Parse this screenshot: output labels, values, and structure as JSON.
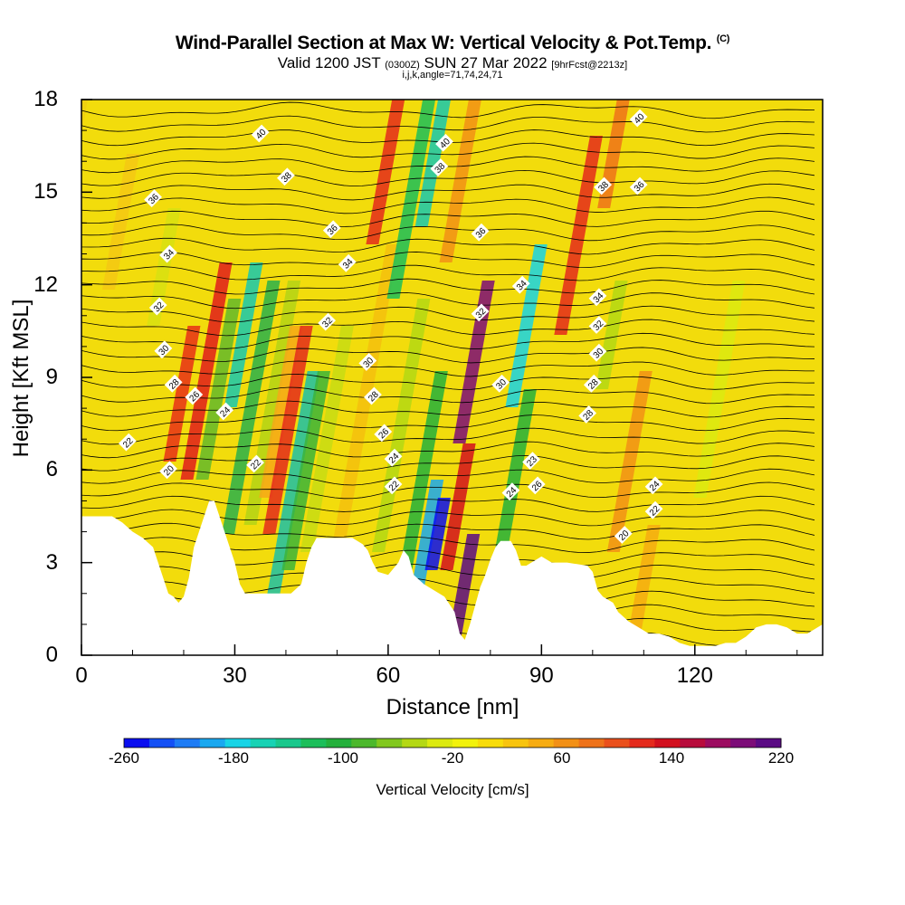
{
  "header": {
    "title": "Wind-Parallel Section at Max W: Vertical Velocity & Pot.Temp.",
    "copyright": "(C)",
    "valid_prefix": "Valid 1200 JST",
    "valid_utc": "(0300Z)",
    "valid_suffix": "SUN 27 Mar 2022",
    "forecast": "[9hrFcst@2213z]",
    "indices": "i,j,k,angle=71,74,24,71"
  },
  "colorbar": {
    "label": "Vertical Velocity [cm/s]",
    "tick_labels": [
      "-260",
      "-180",
      "-100",
      "-20",
      "60",
      "140",
      "220"
    ],
    "colors": [
      "#0a0ef0",
      "#1450f5",
      "#1e7cf5",
      "#1aa8f0",
      "#18d4e6",
      "#18d2b4",
      "#1ac88c",
      "#1cbe5a",
      "#24b03c",
      "#4cb82c",
      "#82c81e",
      "#b4d814",
      "#dcea10",
      "#f2f20c",
      "#f8dc0a",
      "#f8c40e",
      "#f6ac12",
      "#f29016",
      "#ee721a",
      "#ea501c",
      "#e42a1c",
      "#d2101e",
      "#b80c3c",
      "#9c0c60",
      "#7c0c78",
      "#5a0a84"
    ]
  },
  "chart_data": {
    "type": "heatmap",
    "xlabel": "Distance [nm]",
    "ylabel": "Height [Kft MSL]",
    "xlim": [
      0,
      145
    ],
    "ylim": [
      0,
      18
    ],
    "x_ticks": [
      "0",
      "30",
      "60",
      "90",
      "120"
    ],
    "y_ticks": [
      "0",
      "3",
      "6",
      "9",
      "12",
      "15",
      "18"
    ],
    "color_variable": "Vertical Velocity [cm/s]",
    "color_range": [
      -260,
      220
    ],
    "contour_variable": "Pot.Temp. (C)",
    "contour_labels": [
      {
        "text": "40",
        "x": 35,
        "y": 16.9
      },
      {
        "text": "38",
        "x": 40,
        "y": 15.5
      },
      {
        "text": "36",
        "x": 14,
        "y": 14.8
      },
      {
        "text": "36",
        "x": 49,
        "y": 13.8
      },
      {
        "text": "34",
        "x": 17,
        "y": 13.0
      },
      {
        "text": "34",
        "x": 52,
        "y": 12.7
      },
      {
        "text": "32",
        "x": 15,
        "y": 11.3
      },
      {
        "text": "32",
        "x": 48,
        "y": 10.8
      },
      {
        "text": "30",
        "x": 16,
        "y": 9.9
      },
      {
        "text": "30",
        "x": 56,
        "y": 9.5
      },
      {
        "text": "28",
        "x": 18,
        "y": 8.8
      },
      {
        "text": "28",
        "x": 57,
        "y": 8.4
      },
      {
        "text": "26",
        "x": 22,
        "y": 8.4
      },
      {
        "text": "24",
        "x": 28,
        "y": 7.9
      },
      {
        "text": "22",
        "x": 9,
        "y": 6.9
      },
      {
        "text": "22",
        "x": 34,
        "y": 6.2
      },
      {
        "text": "20",
        "x": 17,
        "y": 6.0
      },
      {
        "text": "26",
        "x": 59,
        "y": 7.2
      },
      {
        "text": "24",
        "x": 61,
        "y": 6.4
      },
      {
        "text": "22",
        "x": 61,
        "y": 5.5
      },
      {
        "text": "40",
        "x": 71,
        "y": 16.6
      },
      {
        "text": "38",
        "x": 70,
        "y": 15.8
      },
      {
        "text": "36",
        "x": 78,
        "y": 13.7
      },
      {
        "text": "32",
        "x": 78,
        "y": 11.1
      },
      {
        "text": "30",
        "x": 82,
        "y": 8.8
      },
      {
        "text": "34",
        "x": 86,
        "y": 12.0
      },
      {
        "text": "24",
        "x": 84,
        "y": 5.3
      },
      {
        "text": "23",
        "x": 88,
        "y": 6.3
      },
      {
        "text": "26",
        "x": 89,
        "y": 5.5
      },
      {
        "text": "34",
        "x": 101,
        "y": 11.6
      },
      {
        "text": "32",
        "x": 101,
        "y": 10.7
      },
      {
        "text": "30",
        "x": 101,
        "y": 9.8
      },
      {
        "text": "28",
        "x": 100,
        "y": 8.8
      },
      {
        "text": "28",
        "x": 99,
        "y": 7.8
      },
      {
        "text": "38",
        "x": 102,
        "y": 15.2
      },
      {
        "text": "36",
        "x": 109,
        "y": 15.2
      },
      {
        "text": "40",
        "x": 109,
        "y": 17.4
      },
      {
        "text": "24",
        "x": 112,
        "y": 5.5
      },
      {
        "text": "22",
        "x": 112,
        "y": 4.7
      },
      {
        "text": "20",
        "x": 106,
        "y": 3.9
      }
    ]
  }
}
